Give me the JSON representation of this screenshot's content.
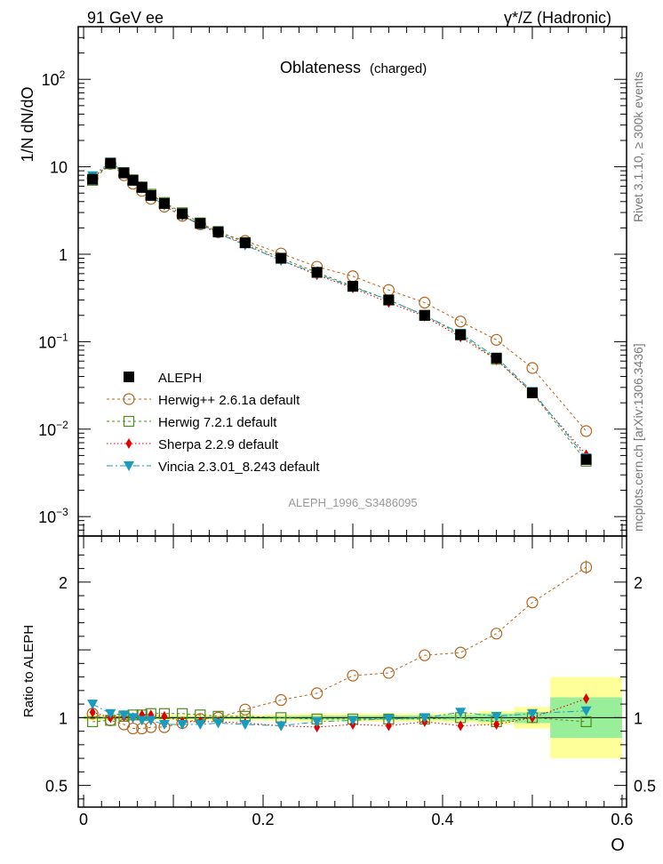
{
  "chart_data": [
    {
      "panel": "main",
      "type": "line",
      "energy_label": "91 GeV ee",
      "process_label": "γ*/Z (Hadronic)",
      "title": "Oblateness",
      "title_sub": "(charged)",
      "ylabel": "1/N dN/dO",
      "yscale": "log",
      "ylim": [
        0.0006,
        400
      ],
      "xlim": [
        -0.006,
        0.605
      ],
      "y_ticks": [
        {
          "value": 100,
          "base": "10",
          "exp": "2"
        },
        {
          "value": 10,
          "base": "10",
          "exp": ""
        },
        {
          "value": 1,
          "base": "1",
          "exp": ""
        },
        {
          "value": 0.1,
          "base": "10",
          "exp": "−1"
        },
        {
          "value": 0.01,
          "base": "10",
          "exp": "−2"
        },
        {
          "value": 0.001,
          "base": "10",
          "exp": "−3"
        }
      ],
      "analysis_label": "ALEPH_1996_S3486095",
      "side_label_top": "Rivet 3.1.10, ≥ 300k events",
      "side_label_bottom": "mcplots.cern.ch [arXiv:1306.3436]",
      "x": [
        0.01,
        0.03,
        0.045,
        0.055,
        0.065,
        0.075,
        0.09,
        0.11,
        0.13,
        0.15,
        0.18,
        0.22,
        0.26,
        0.3,
        0.34,
        0.38,
        0.42,
        0.46,
        0.5,
        0.56
      ],
      "series": [
        {
          "name": "ALEPH",
          "key": "data",
          "color": "#000000",
          "values": [
            7.2,
            11.0,
            8.5,
            7.0,
            5.8,
            4.7,
            3.8,
            2.9,
            2.25,
            1.8,
            1.35,
            0.9,
            0.62,
            0.43,
            0.3,
            0.2,
            0.12,
            0.065,
            0.026,
            0.0045
          ]
        },
        {
          "name": "Herwig++ 2.6.1a default",
          "key": "herwigpp",
          "color": "#B5651D",
          "values": [
            7.4,
            10.8,
            8.0,
            6.4,
            5.3,
            4.3,
            3.5,
            2.75,
            2.2,
            1.78,
            1.42,
            1.02,
            0.72,
            0.56,
            0.39,
            0.28,
            0.17,
            0.105,
            0.05,
            0.0095
          ]
        },
        {
          "name": "Herwig 7.2.1 default",
          "key": "herwig7",
          "color": "#4E8A1E",
          "values": [
            7.0,
            10.8,
            8.6,
            7.1,
            5.9,
            4.85,
            3.9,
            2.98,
            2.28,
            1.82,
            1.36,
            0.9,
            0.62,
            0.43,
            0.3,
            0.2,
            0.12,
            0.063,
            0.026,
            0.0043
          ]
        },
        {
          "name": "Sherpa 2.2.9 default",
          "key": "sherpa",
          "color": "#E00000",
          "values": [
            7.5,
            11.0,
            8.6,
            7.0,
            5.95,
            4.8,
            3.85,
            2.8,
            2.2,
            1.75,
            1.3,
            0.85,
            0.58,
            0.41,
            0.28,
            0.195,
            0.113,
            0.062,
            0.026,
            0.0051
          ]
        },
        {
          "name": "Vincia 2.3.01_8.243 default",
          "key": "vincia",
          "color": "#1A9BBE",
          "values": [
            7.9,
            11.3,
            8.7,
            7.0,
            5.7,
            4.6,
            3.6,
            2.75,
            2.15,
            1.73,
            1.27,
            0.85,
            0.6,
            0.42,
            0.3,
            0.2,
            0.125,
            0.066,
            0.027,
            0.0047
          ]
        }
      ]
    },
    {
      "panel": "ratio",
      "type": "line",
      "ylabel": "Ratio to ALEPH",
      "xlabel": "O",
      "ylim": [
        0.34,
        2.34
      ],
      "xlim": [
        -0.006,
        0.605
      ],
      "y_ticks": [
        {
          "value": 0.5,
          "label": "0.5"
        },
        {
          "value": 1,
          "label": "1"
        },
        {
          "value": 2,
          "label": "2"
        }
      ],
      "x_ticks": [
        {
          "value": 0,
          "label": "0"
        },
        {
          "value": 0.2,
          "label": "0.2"
        },
        {
          "value": 0.4,
          "label": "0.4"
        },
        {
          "value": 0.6,
          "label": "0.6"
        }
      ],
      "bands": {
        "edges": [
          0.0,
          0.02,
          0.04,
          0.05,
          0.06,
          0.07,
          0.08,
          0.1,
          0.12,
          0.14,
          0.16,
          0.2,
          0.24,
          0.28,
          0.32,
          0.36,
          0.4,
          0.44,
          0.48,
          0.52,
          0.6
        ],
        "stat_syst": [
          0.02,
          0.02,
          0.02,
          0.02,
          0.02,
          0.02,
          0.02,
          0.02,
          0.02,
          0.02,
          0.02,
          0.025,
          0.03,
          0.03,
          0.03,
          0.03,
          0.035,
          0.05,
          0.08,
          0.3
        ],
        "stat": [
          0.01,
          0.01,
          0.01,
          0.01,
          0.01,
          0.01,
          0.01,
          0.01,
          0.01,
          0.01,
          0.01,
          0.012,
          0.015,
          0.015,
          0.015,
          0.015,
          0.02,
          0.03,
          0.04,
          0.15
        ],
        "outer_color": "#FFFF99",
        "inner_color": "#99EE99"
      },
      "x": [
        0.01,
        0.03,
        0.045,
        0.055,
        0.065,
        0.075,
        0.09,
        0.11,
        0.13,
        0.15,
        0.18,
        0.22,
        0.26,
        0.3,
        0.34,
        0.38,
        0.42,
        0.46,
        0.5,
        0.56
      ],
      "series": [
        {
          "name": "Herwig++ 2.6.1a default",
          "key": "herwigpp",
          "values": [
            1.03,
            0.98,
            0.95,
            0.92,
            0.92,
            0.93,
            0.93,
            0.96,
            0.99,
            1.0,
            1.06,
            1.13,
            1.18,
            1.31,
            1.33,
            1.46,
            1.48,
            1.62,
            1.85,
            2.11
          ]
        },
        {
          "name": "Herwig 7.2.1 default",
          "key": "herwig7",
          "values": [
            0.97,
            0.98,
            1.01,
            1.02,
            1.02,
            1.03,
            1.03,
            1.03,
            1.02,
            1.01,
            1.01,
            1.0,
            0.99,
            0.99,
            0.99,
            0.99,
            1.0,
            0.97,
            1.0,
            0.97
          ]
        },
        {
          "name": "Sherpa 2.2.9 default",
          "key": "sherpa",
          "values": [
            1.04,
            1.0,
            1.01,
            1.0,
            1.02,
            1.02,
            1.01,
            0.97,
            0.97,
            0.97,
            0.96,
            0.94,
            0.93,
            0.95,
            0.94,
            0.97,
            0.94,
            0.95,
            1.0,
            1.14
          ]
        },
        {
          "name": "Vincia 2.3.01_8.243 default",
          "key": "vincia",
          "values": [
            1.1,
            1.03,
            1.02,
            1.0,
            0.98,
            0.98,
            0.95,
            0.95,
            0.95,
            0.96,
            0.95,
            0.94,
            0.97,
            0.98,
            0.99,
            1.0,
            1.04,
            1.01,
            1.03,
            1.05
          ]
        }
      ]
    }
  ]
}
